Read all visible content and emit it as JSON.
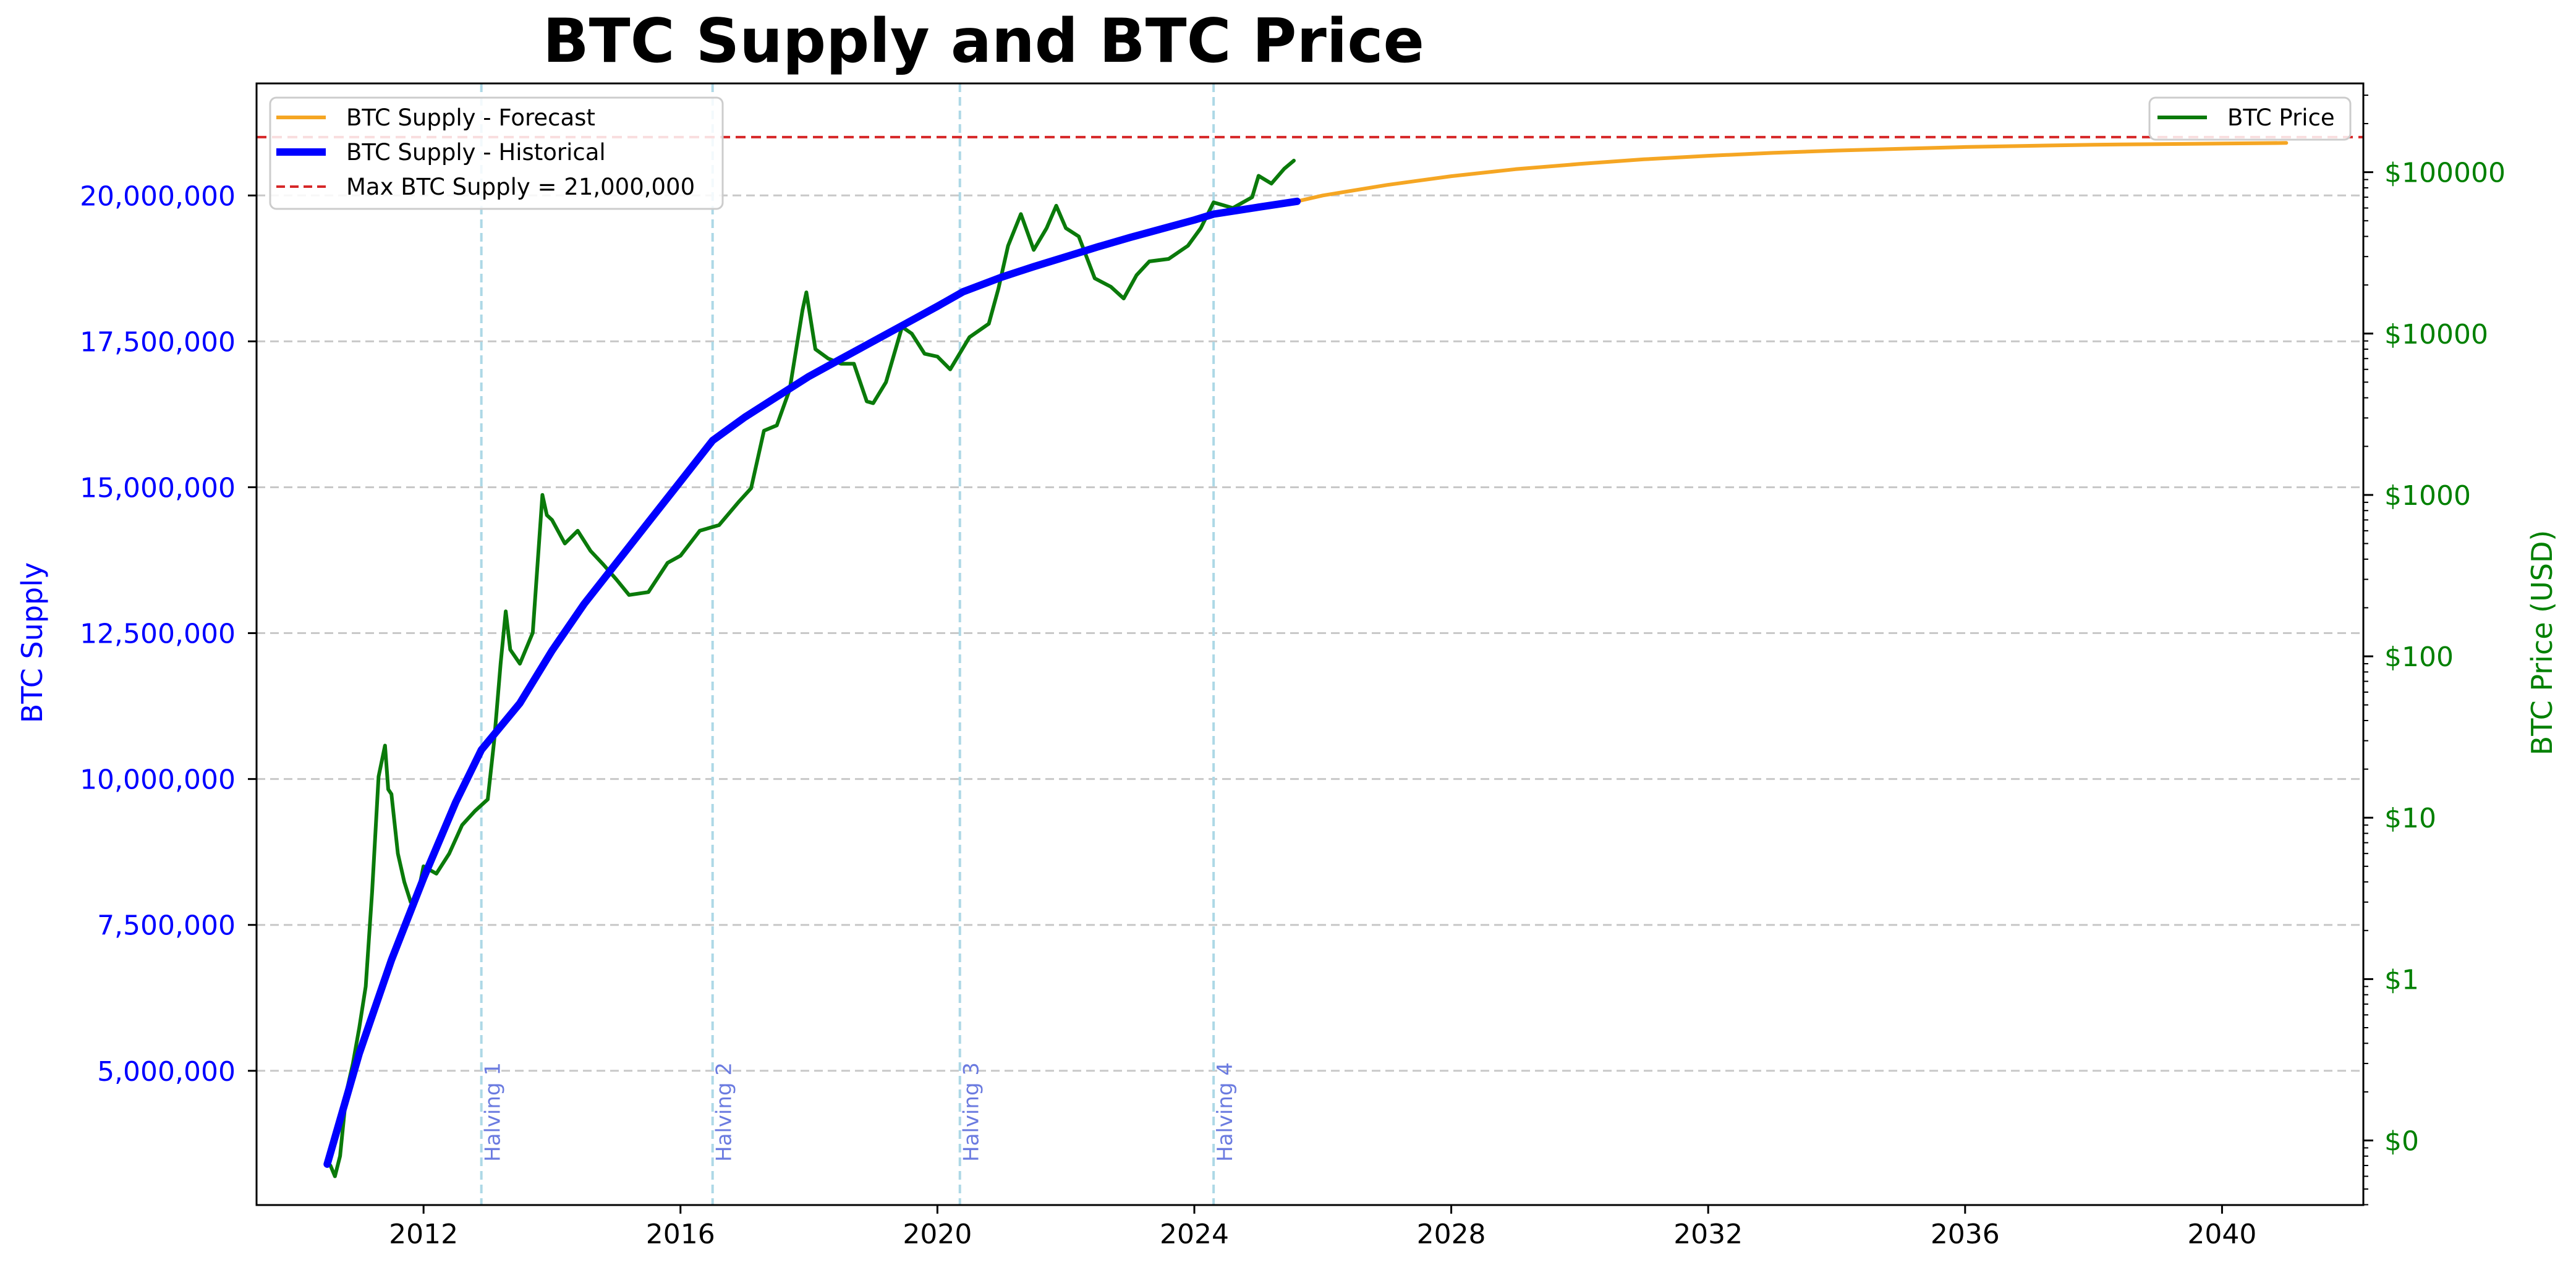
{
  "colors": {
    "supply_axis": "#0000ff",
    "price_axis": "#008000",
    "forecast": "#f5a623",
    "historical": "#0000ff",
    "price_line": "#0a7a0a",
    "max_line": "#d62728",
    "halving": "#add8e6",
    "halving_text": "#6b7be0",
    "grid": "#c8c8c8"
  },
  "chart_data": {
    "type": "line",
    "title": "BTC Supply and BTC Price",
    "xlabel": "",
    "ylabel": "BTC Supply",
    "y2label": "BTC Price (USD)",
    "xlim": [
      2009.4,
      2042.2
    ],
    "ylim": [
      2700000,
      21920000
    ],
    "y2_log": true,
    "y2_decades_range": [
      -1.4,
      5.55
    ],
    "grid": true,
    "x_ticks": [
      "2012",
      "2016",
      "2020",
      "2024",
      "2028",
      "2032",
      "2036",
      "2040"
    ],
    "x_tick_values": [
      2012,
      2016,
      2020,
      2024,
      2028,
      2032,
      2036,
      2040
    ],
    "y_ticks": [
      "5,000,000",
      "7,500,000",
      "10,000,000",
      "12,500,000",
      "15,000,000",
      "17,500,000",
      "20,000,000"
    ],
    "y_tick_values": [
      5000000,
      7500000,
      10000000,
      12500000,
      15000000,
      17500000,
      20000000
    ],
    "y2_ticks": [
      "$0",
      "$1",
      "$10",
      "$100",
      "$1000",
      "$10000",
      "$100000"
    ],
    "y2_tick_values": [
      0.1,
      1,
      10,
      100,
      1000,
      10000,
      100000
    ],
    "max_supply": 21000000,
    "legend_left": {
      "placement": "top-left",
      "items": [
        {
          "label": "BTC Supply - Forecast",
          "style": "forecast"
        },
        {
          "label": "BTC Supply - Historical",
          "style": "historical"
        },
        {
          "label": "Max BTC Supply = 21,000,000",
          "style": "max"
        }
      ]
    },
    "legend_right": {
      "placement": "top-right",
      "items": [
        {
          "label": "BTC Price",
          "style": "price"
        }
      ]
    },
    "halvings": [
      {
        "label": "Halving 1",
        "x": 2012.9
      },
      {
        "label": "Halving 2",
        "x": 2016.5
      },
      {
        "label": "Halving 3",
        "x": 2020.35
      },
      {
        "label": "Halving 4",
        "x": 2024.3
      }
    ],
    "series": [
      {
        "name": "BTC Supply - Historical",
        "axis": "left",
        "x": [
          2010.5,
          2011.0,
          2011.5,
          2012.0,
          2012.5,
          2012.9,
          2013.5,
          2014.0,
          2014.5,
          2015.0,
          2015.5,
          2016.0,
          2016.5,
          2017.0,
          2017.5,
          2018.0,
          2018.5,
          2019.0,
          2019.5,
          2020.0,
          2020.4,
          2021.0,
          2021.5,
          2022.0,
          2022.5,
          2023.0,
          2023.5,
          2024.0,
          2024.3,
          2025.0,
          2025.6
        ],
        "y": [
          3400000,
          5300000,
          6900000,
          8300000,
          9600000,
          10500000,
          11300000,
          12200000,
          13000000,
          13700000,
          14400000,
          15100000,
          15800000,
          16200000,
          16550000,
          16900000,
          17200000,
          17500000,
          17800000,
          18100000,
          18350000,
          18600000,
          18780000,
          18950000,
          19120000,
          19280000,
          19430000,
          19580000,
          19680000,
          19800000,
          19900000
        ]
      },
      {
        "name": "BTC Supply - Forecast",
        "axis": "left",
        "x": [
          2025.6,
          2026.0,
          2027.0,
          2028.0,
          2029.0,
          2030.0,
          2031.0,
          2032.0,
          2033.0,
          2034.0,
          2035.0,
          2036.0,
          2037.0,
          2038.0,
          2039.0,
          2040.0,
          2041.0
        ],
        "y": [
          19900000,
          20000000,
          20180000,
          20330000,
          20450000,
          20540000,
          20620000,
          20680000,
          20730000,
          20770000,
          20800000,
          20830000,
          20850000,
          20870000,
          20880000,
          20890000,
          20900000
        ]
      },
      {
        "name": "BTC Price",
        "axis": "right",
        "x": [
          2010.55,
          2010.62,
          2010.7,
          2010.8,
          2010.9,
          2011.0,
          2011.1,
          2011.2,
          2011.3,
          2011.4,
          2011.45,
          2011.5,
          2011.6,
          2011.7,
          2011.8,
          2011.9,
          2012.0,
          2012.2,
          2012.4,
          2012.6,
          2012.8,
          2013.0,
          2013.1,
          2013.2,
          2013.28,
          2013.35,
          2013.5,
          2013.7,
          2013.85,
          2013.92,
          2014.0,
          2014.2,
          2014.4,
          2014.6,
          2014.8,
          2015.0,
          2015.2,
          2015.5,
          2015.8,
          2016.0,
          2016.3,
          2016.6,
          2016.9,
          2017.1,
          2017.3,
          2017.5,
          2017.7,
          2017.9,
          2017.96,
          2018.1,
          2018.3,
          2018.5,
          2018.7,
          2018.9,
          2019.0,
          2019.2,
          2019.45,
          2019.6,
          2019.8,
          2020.0,
          2020.2,
          2020.5,
          2020.8,
          2020.95,
          2021.1,
          2021.3,
          2021.5,
          2021.7,
          2021.85,
          2022.0,
          2022.2,
          2022.45,
          2022.7,
          2022.9,
          2023.1,
          2023.3,
          2023.6,
          2023.9,
          2024.1,
          2024.3,
          2024.6,
          2024.9,
          2025.0,
          2025.2,
          2025.4,
          2025.55
        ],
        "y": [
          0.07,
          0.06,
          0.08,
          0.2,
          0.3,
          0.5,
          0.9,
          3.5,
          18,
          28,
          15,
          14,
          6,
          4,
          3,
          3.2,
          5,
          4.5,
          6,
          9,
          11,
          13,
          30,
          90,
          190,
          110,
          90,
          140,
          1000,
          750,
          700,
          500,
          600,
          450,
          370,
          300,
          240,
          250,
          380,
          420,
          600,
          650,
          900,
          1100,
          2500,
          2700,
          4500,
          14000,
          18000,
          8000,
          7000,
          6500,
          6500,
          3800,
          3700,
          5000,
          11000,
          10000,
          7500,
          7200,
          6000,
          9500,
          11500,
          19000,
          35000,
          55000,
          33000,
          45000,
          62000,
          45000,
          40000,
          22000,
          19500,
          16500,
          23000,
          28000,
          29000,
          35000,
          45000,
          65000,
          60000,
          70000,
          95000,
          85000,
          105000,
          118000
        ]
      }
    ]
  }
}
